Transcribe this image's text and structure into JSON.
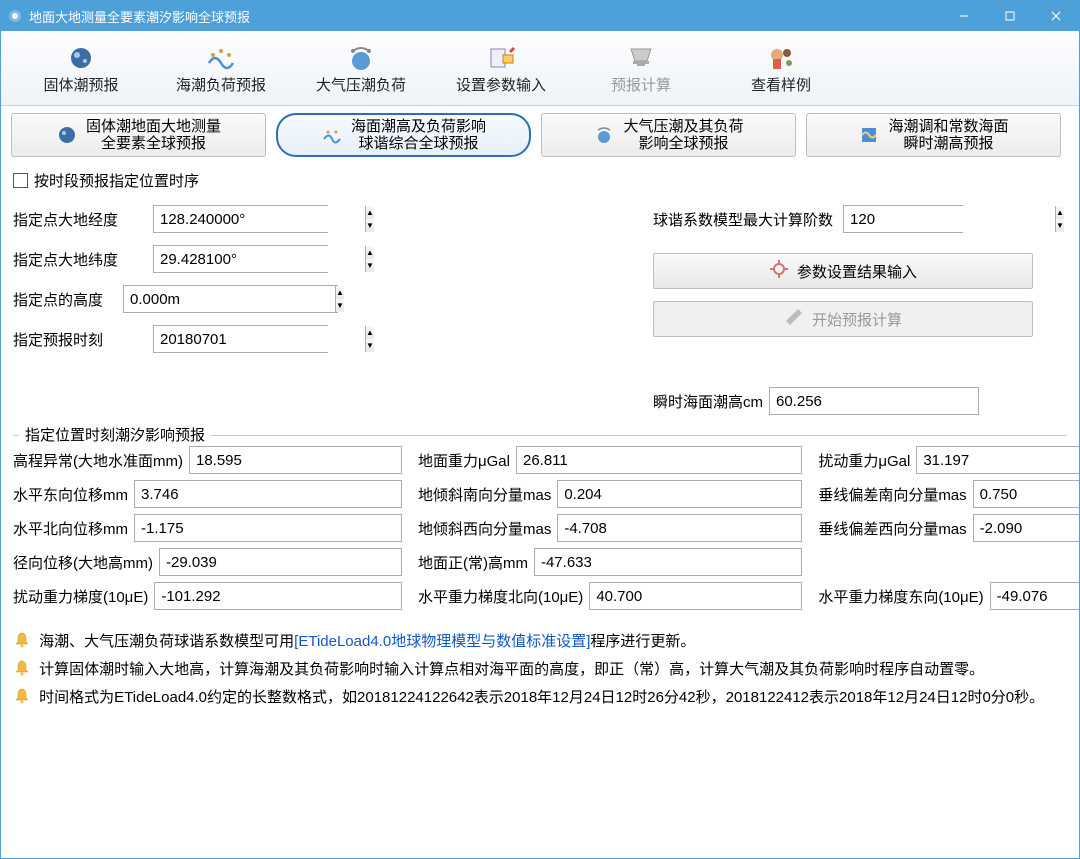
{
  "window": {
    "title": "地面大地测量全要素潮汐影响全球预报"
  },
  "toolbar": {
    "items": [
      {
        "label": "固体潮预报"
      },
      {
        "label": "海潮负荷预报"
      },
      {
        "label": "大气压潮负荷"
      },
      {
        "label": "设置参数输入"
      },
      {
        "label": "预报计算",
        "disabled": true
      },
      {
        "label": "查看样例"
      }
    ]
  },
  "subnav": {
    "items": [
      {
        "label": "固体潮地面大地测量\n全要素全球预报"
      },
      {
        "label": "海面潮高及负荷影响\n球谐综合全球预报",
        "selected": true
      },
      {
        "label": "大气压潮及其负荷\n影响全球预报"
      },
      {
        "label": "海潮调和常数海面\n瞬时潮高预报"
      }
    ]
  },
  "checkbox": {
    "label": "按时段预报指定位置时序",
    "checked": false
  },
  "params": {
    "lon": {
      "label": "指定点大地经度",
      "value": "128.240000°"
    },
    "lat": {
      "label": "指定点大地纬度",
      "value": "29.428100°"
    },
    "height": {
      "label": "指定点的高度",
      "value": "0.000m"
    },
    "time": {
      "label": "指定预报时刻",
      "value": "20180701"
    },
    "order": {
      "label": "球谐系数模型最大计算阶数",
      "value": "120"
    }
  },
  "actions": {
    "settings": "参数设置结果输入",
    "compute": "开始预报计算"
  },
  "instant": {
    "label": "瞬时海面潮高cm",
    "value": "60.256"
  },
  "group": {
    "title": "指定位置时刻潮汐影响预报",
    "rows": [
      [
        {
          "label": "高程异常(大地水准面mm)",
          "value": "18.595"
        },
        {
          "label": "地面重力μGal",
          "value": "26.811"
        },
        {
          "label": "扰动重力μGal",
          "value": "31.197"
        }
      ],
      [
        {
          "label": "水平东向位移mm",
          "value": "3.746"
        },
        {
          "label": "地倾斜南向分量mas",
          "value": "0.204"
        },
        {
          "label": "垂线偏差南向分量mas",
          "value": "0.750"
        }
      ],
      [
        {
          "label": "水平北向位移mm",
          "value": "-1.175"
        },
        {
          "label": "地倾斜西向分量mas",
          "value": "-4.708"
        },
        {
          "label": "垂线偏差西向分量mas",
          "value": "-2.090"
        }
      ],
      [
        {
          "label": "径向位移(大地高mm)",
          "value": "-29.039"
        },
        {
          "label": "地面正(常)高mm",
          "value": "-47.633"
        },
        {
          "label": "",
          "value": ""
        }
      ],
      [
        {
          "label": "扰动重力梯度(10μE)",
          "value": "-101.292"
        },
        {
          "label": "水平重力梯度北向(10μE)",
          "value": "40.700"
        },
        {
          "label": "水平重力梯度东向(10μE)",
          "value": "-49.076"
        }
      ]
    ]
  },
  "notes": {
    "lines": [
      {
        "pre": "海潮、大气压潮负荷球谐系数模型可用",
        "link": "[ETideLoad4.0地球物理模型与数值标准设置]",
        "post": "程序进行更新。"
      },
      {
        "pre": "计算固体潮时输入大地高，计算海潮及其负荷影响时输入计算点相对海平面的高度，即正（常）高，计算大气潮及其负荷影响时程序自动置零。",
        "link": "",
        "post": ""
      },
      {
        "pre": "时间格式为ETideLoad4.0约定的长整数格式，如20181224122642表示2018年12月24日12时26分42秒，2018122412表示2018年12月24日12时0分0秒。",
        "link": "",
        "post": ""
      }
    ]
  },
  "colors": {
    "titlebar": "#4da0d8",
    "border": "#abadb3",
    "link": "#1058c4"
  }
}
